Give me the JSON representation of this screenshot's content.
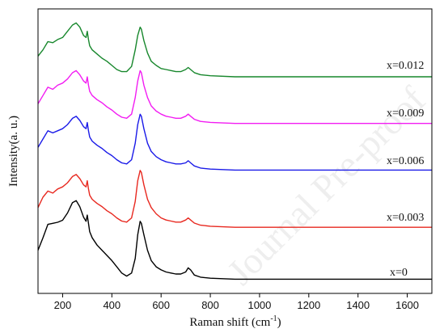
{
  "chart_data": {
    "type": "line",
    "xlabel_main": "Raman shift (cm",
    "xlabel_sup": "-1",
    "xlabel_end": ")",
    "ylabel": "Intensity(a. u.)",
    "xlim": [
      100,
      1700
    ],
    "xticks": [
      200,
      400,
      600,
      800,
      1000,
      1200,
      1400,
      1600
    ],
    "yticks_shown": false,
    "grid": false,
    "watermark": "Journal Pre-proof",
    "series": [
      {
        "label": "x=0",
        "color": "#000000",
        "x": [
          100,
          120,
          140,
          160,
          180,
          200,
          220,
          240,
          255,
          270,
          285,
          295,
          300,
          305,
          310,
          320,
          340,
          360,
          380,
          400,
          420,
          440,
          460,
          480,
          495,
          505,
          515,
          520,
          530,
          545,
          560,
          580,
          600,
          620,
          640,
          660,
          680,
          700,
          710,
          720,
          735,
          760,
          800,
          900,
          1000,
          1100,
          1200,
          1300,
          1400,
          1500,
          1600,
          1700
        ],
        "y": [
          0.3,
          0.42,
          0.55,
          0.56,
          0.57,
          0.59,
          0.66,
          0.76,
          0.78,
          0.72,
          0.62,
          0.58,
          0.64,
          0.56,
          0.48,
          0.42,
          0.35,
          0.3,
          0.25,
          0.2,
          0.14,
          0.08,
          0.05,
          0.08,
          0.22,
          0.45,
          0.58,
          0.56,
          0.45,
          0.3,
          0.2,
          0.14,
          0.11,
          0.09,
          0.08,
          0.07,
          0.07,
          0.09,
          0.13,
          0.11,
          0.06,
          0.04,
          0.03,
          0.02,
          0.02,
          0.02,
          0.02,
          0.02,
          0.02,
          0.02,
          0.02,
          0.02
        ]
      },
      {
        "label": "x=0.003",
        "color": "#e8281f",
        "x": [
          100,
          120,
          140,
          160,
          180,
          200,
          220,
          240,
          255,
          270,
          285,
          295,
          300,
          305,
          310,
          320,
          340,
          360,
          380,
          400,
          420,
          440,
          460,
          480,
          495,
          505,
          515,
          520,
          530,
          545,
          560,
          580,
          600,
          620,
          640,
          660,
          680,
          700,
          710,
          720,
          735,
          760,
          800,
          900,
          1000,
          1100,
          1200,
          1300,
          1400,
          1500,
          1600,
          1700
        ],
        "y": [
          0.22,
          0.32,
          0.38,
          0.36,
          0.4,
          0.42,
          0.46,
          0.52,
          0.54,
          0.5,
          0.44,
          0.42,
          0.48,
          0.4,
          0.34,
          0.3,
          0.26,
          0.23,
          0.19,
          0.16,
          0.12,
          0.09,
          0.08,
          0.12,
          0.28,
          0.48,
          0.58,
          0.56,
          0.44,
          0.3,
          0.22,
          0.16,
          0.12,
          0.1,
          0.09,
          0.08,
          0.08,
          0.1,
          0.12,
          0.1,
          0.07,
          0.05,
          0.04,
          0.03,
          0.03,
          0.03,
          0.03,
          0.03,
          0.03,
          0.03,
          0.03,
          0.03
        ]
      },
      {
        "label": "x=0.006",
        "color": "#1a1ae8",
        "x": [
          100,
          120,
          140,
          160,
          180,
          200,
          220,
          240,
          255,
          270,
          285,
          295,
          300,
          305,
          310,
          320,
          340,
          360,
          380,
          400,
          420,
          440,
          460,
          480,
          495,
          505,
          515,
          520,
          530,
          545,
          560,
          580,
          600,
          620,
          640,
          660,
          680,
          700,
          710,
          720,
          735,
          760,
          800,
          900,
          1000,
          1100,
          1200,
          1300,
          1400,
          1500,
          1600,
          1700
        ],
        "y": [
          0.24,
          0.32,
          0.4,
          0.38,
          0.4,
          0.42,
          0.46,
          0.52,
          0.54,
          0.5,
          0.44,
          0.42,
          0.48,
          0.4,
          0.34,
          0.3,
          0.26,
          0.23,
          0.19,
          0.16,
          0.12,
          0.09,
          0.08,
          0.12,
          0.28,
          0.46,
          0.56,
          0.54,
          0.42,
          0.28,
          0.2,
          0.15,
          0.12,
          0.1,
          0.09,
          0.08,
          0.08,
          0.09,
          0.11,
          0.09,
          0.06,
          0.04,
          0.03,
          0.02,
          0.02,
          0.02,
          0.02,
          0.02,
          0.02,
          0.02,
          0.02,
          0.02
        ]
      },
      {
        "label": "x=0.009",
        "color": "#f21cf2",
        "x": [
          100,
          120,
          140,
          160,
          180,
          200,
          220,
          240,
          255,
          270,
          285,
          295,
          300,
          305,
          310,
          320,
          340,
          360,
          380,
          400,
          420,
          440,
          460,
          480,
          495,
          505,
          515,
          520,
          530,
          545,
          560,
          580,
          600,
          620,
          640,
          660,
          680,
          700,
          710,
          720,
          735,
          760,
          800,
          900,
          1000,
          1100,
          1200,
          1300,
          1400,
          1500,
          1600,
          1700
        ],
        "y": [
          0.2,
          0.28,
          0.36,
          0.34,
          0.38,
          0.4,
          0.44,
          0.5,
          0.52,
          0.48,
          0.42,
          0.4,
          0.46,
          0.38,
          0.32,
          0.28,
          0.24,
          0.21,
          0.17,
          0.14,
          0.1,
          0.07,
          0.06,
          0.1,
          0.26,
          0.42,
          0.52,
          0.5,
          0.38,
          0.26,
          0.18,
          0.13,
          0.1,
          0.08,
          0.07,
          0.06,
          0.06,
          0.08,
          0.1,
          0.08,
          0.05,
          0.03,
          0.02,
          0.01,
          0.01,
          0.01,
          0.01,
          0.01,
          0.01,
          0.01,
          0.01,
          0.01
        ]
      },
      {
        "label": "x=0.012",
        "color": "#17872c",
        "x": [
          100,
          120,
          140,
          160,
          180,
          200,
          220,
          240,
          255,
          270,
          285,
          295,
          300,
          305,
          310,
          320,
          340,
          360,
          380,
          400,
          420,
          440,
          460,
          480,
          495,
          505,
          515,
          520,
          530,
          545,
          560,
          580,
          600,
          620,
          640,
          660,
          680,
          700,
          710,
          720,
          735,
          760,
          800,
          900,
          1000,
          1100,
          1200,
          1300,
          1400,
          1500,
          1600,
          1700
        ],
        "y": [
          0.2,
          0.26,
          0.34,
          0.33,
          0.36,
          0.38,
          0.44,
          0.5,
          0.52,
          0.48,
          0.4,
          0.38,
          0.44,
          0.36,
          0.3,
          0.26,
          0.22,
          0.18,
          0.15,
          0.11,
          0.07,
          0.05,
          0.05,
          0.1,
          0.26,
          0.4,
          0.48,
          0.46,
          0.35,
          0.23,
          0.15,
          0.11,
          0.08,
          0.07,
          0.06,
          0.05,
          0.05,
          0.07,
          0.09,
          0.07,
          0.04,
          0.02,
          0.01,
          0.0,
          0.0,
          0.0,
          0.0,
          0.0,
          0.0,
          0.0,
          0.0,
          0.0
        ]
      }
    ]
  }
}
